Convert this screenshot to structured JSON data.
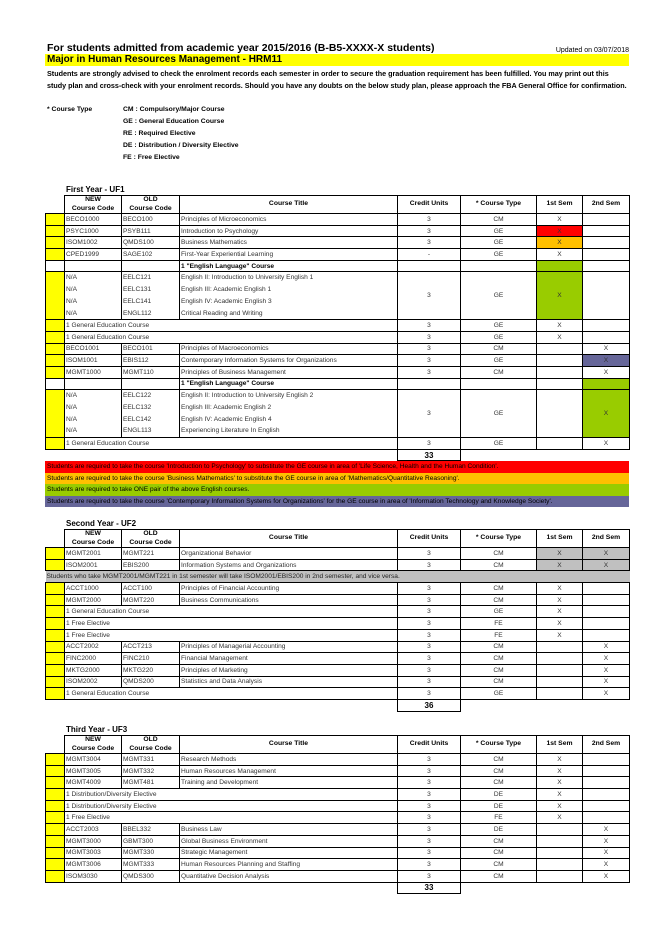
{
  "header": {
    "title": "For students admitted from academic year 2015/2016 (B-B5-XXXX-X students)",
    "updated": "Updated on 03/07/2018",
    "major": "Major in Human Resources Management - HRM11",
    "advice": "Students are strongly advised to check the enrolment records each semester in order to secure the graduation requirement has been fulfilled.  You may print out this study plan and cross-check with your enrolment records.  Should you have any doubts on the below study plan, please approach the FBA General Office for confirmation."
  },
  "legend": {
    "label": "* Course Type",
    "items": [
      "CM : Compulsory/Major Course",
      "GE : General Education Course",
      "RE : Required Elective",
      "DE : Distribution / Diversity Elective",
      "FE :  Free Elective"
    ]
  },
  "columns": [
    "NEW Course Code",
    "OLD Course Code",
    "Course Title",
    "Credit Units",
    "* Course Type",
    "1st Sem",
    "2nd Sem"
  ],
  "colors": {
    "mark": "#ffff00",
    "red": "#ff0000",
    "orange": "#ffc000",
    "green": "#99cc00",
    "purple": "#666699",
    "gray": "#c0c0c0"
  },
  "years": [
    {
      "title": "First Year - UF1",
      "rows": [
        {
          "kind": "course",
          "new": "BECO1000",
          "old": "BECO100",
          "title": "Principles of Microeconomics",
          "cu": "3",
          "type": "CM",
          "s1": "X",
          "s2": ""
        },
        {
          "kind": "course",
          "new": "PSYC1000",
          "old": "PSYB111",
          "title": "Introduction to Psychology",
          "cu": "3",
          "type": "GE",
          "s1": "X",
          "s2": "",
          "s1bg": "red"
        },
        {
          "kind": "course",
          "new": "ISOM1002",
          "old": "QMDS100",
          "title": "Business Mathematics",
          "cu": "3",
          "type": "GE",
          "s1": "X",
          "s2": "",
          "s1bg": "orange"
        },
        {
          "kind": "course",
          "new": "CPED1999",
          "old": "SAGE102",
          "title": "First-Year Experiential Learning",
          "cu": "-",
          "type": "GE",
          "s1": "X",
          "s2": ""
        },
        {
          "kind": "heading",
          "title": "1 \"English Language\" Course",
          "s1bg": "green"
        },
        {
          "kind": "group",
          "lines": [
            {
              "new": "N/A",
              "old": "EELC121",
              "title": "English II: Introduction to University English 1"
            },
            {
              "new": "N/A",
              "old": "EELC131",
              "title": "English III: Academic English 1"
            },
            {
              "new": "N/A",
              "old": "EELC141",
              "title": "English IV: Academic English 3"
            },
            {
              "new": "N/A",
              "old": "ENGL112",
              "title": "Critical Reading and Writing"
            }
          ],
          "cu": "3",
          "type": "GE",
          "s1": "X",
          "s2": "",
          "s1bg": "green"
        },
        {
          "kind": "span",
          "label": "1 General Education Course",
          "cu": "3",
          "type": "GE",
          "s1": "X",
          "s2": ""
        },
        {
          "kind": "span",
          "label": "1 General Education Course",
          "cu": "3",
          "type": "GE",
          "s1": "X",
          "s2": ""
        },
        {
          "kind": "course",
          "new": "BECO1001",
          "old": "BECO101",
          "title": "Principles of Macroeconomics",
          "cu": "3",
          "type": "CM",
          "s1": "",
          "s2": "X"
        },
        {
          "kind": "course",
          "new": "ISOM1001",
          "old": "EBIS112",
          "title": "Contemporary Information Systems for Organizations",
          "cu": "3",
          "type": "GE",
          "s1": "",
          "s2": "X",
          "s2bg": "purple"
        },
        {
          "kind": "course",
          "new": "MGMT1000",
          "old": "MGMT110",
          "title": "Principles of Business Management",
          "cu": "3",
          "type": "CM",
          "s1": "",
          "s2": "X"
        },
        {
          "kind": "heading",
          "title": "1 \"English Language\" Course",
          "s2bg": "green"
        },
        {
          "kind": "group",
          "lines": [
            {
              "new": "N/A",
              "old": "EELC122",
              "title": "English II: Introduction to University English 2"
            },
            {
              "new": "N/A",
              "old": "EELC132",
              "title": "English III: Academic English 2"
            },
            {
              "new": "N/A",
              "old": "EELC142",
              "title": "English IV: Academic English 4"
            },
            {
              "new": "N/A",
              "old": "ENGL113",
              "title": "Experiencing Literature In English"
            }
          ],
          "cu": "3",
          "type": "GE",
          "s1": "",
          "s2": "X",
          "s2bg": "green"
        },
        {
          "kind": "span",
          "label": "1 General Education Course",
          "cu": "3",
          "type": "GE",
          "s1": "",
          "s2": "X"
        }
      ],
      "total": "33",
      "notes": [
        {
          "text": "Students are required to take the course 'Introduction to Psychology' to substitute the GE course in area of 'Life Science, Health and the Human Condition'.",
          "bg": "red"
        },
        {
          "text": "Students are required to take the course 'Business Mathematics' to substitute the GE course in area of 'Mathematics/Quantitative Reasoning'.",
          "bg": "orange"
        },
        {
          "text": "Students are required to take ONE pair of the above English courses.",
          "bg": "green"
        },
        {
          "text": "Students are required to take the course 'Contemporary Information Systems for Organizations' for the GE course in area of 'Information Technology and Knowledge Society'.",
          "bg": "purple"
        }
      ]
    },
    {
      "title": "Second Year - UF2",
      "rows": [
        {
          "kind": "course",
          "new": "MGMT2001",
          "old": "MGMT221",
          "title": "Organizational Behavior",
          "cu": "3",
          "type": "CM",
          "s1": "X",
          "s2": "X",
          "s1bg": "gray",
          "s2bg": "gray"
        },
        {
          "kind": "course",
          "new": "ISOM2001",
          "old": "EBIS200",
          "title": "Information Systems and Organizations",
          "cu": "3",
          "type": "CM",
          "s1": "X",
          "s2": "X",
          "s1bg": "gray",
          "s2bg": "gray"
        },
        {
          "kind": "note",
          "text": "Students who take MGMT2001/MGMT221 in 1st semester will take ISOM2001/EBIS200 in 2nd semester, and vice versa."
        },
        {
          "kind": "course",
          "new": "ACCT1000",
          "old": "ACCT100",
          "title": "Principles of Financial Accounting",
          "cu": "3",
          "type": "CM",
          "s1": "X",
          "s2": ""
        },
        {
          "kind": "course",
          "new": "MGMT2000",
          "old": "MGMT220",
          "title": "Business Communications",
          "cu": "3",
          "type": "CM",
          "s1": "X",
          "s2": ""
        },
        {
          "kind": "span",
          "label": "1 General Education Course",
          "cu": "3",
          "type": "GE",
          "s1": "X",
          "s2": ""
        },
        {
          "kind": "span",
          "label": "1 Free Elective",
          "cu": "3",
          "type": "FE",
          "s1": "X",
          "s2": ""
        },
        {
          "kind": "span",
          "label": "1 Free Elective",
          "cu": "3",
          "type": "FE",
          "s1": "X",
          "s2": ""
        },
        {
          "kind": "course",
          "new": "ACCT2002",
          "old": "ACCT213",
          "title": "Principles of Managerial Accounting",
          "cu": "3",
          "type": "CM",
          "s1": "",
          "s2": "X"
        },
        {
          "kind": "course",
          "new": "FINC2000",
          "old": "FINC210",
          "title": "Financial Management",
          "cu": "3",
          "type": "CM",
          "s1": "",
          "s2": "X"
        },
        {
          "kind": "course",
          "new": "MKTG2000",
          "old": "MKTG220",
          "title": "Principles of Marketing",
          "cu": "3",
          "type": "CM",
          "s1": "",
          "s2": "X"
        },
        {
          "kind": "course",
          "new": "ISOM2002",
          "old": "QMDS200",
          "title": "Statistics and Data Analysis",
          "cu": "3",
          "type": "CM",
          "s1": "",
          "s2": "X"
        },
        {
          "kind": "span",
          "label": "1 General Education Course",
          "cu": "3",
          "type": "GE",
          "s1": "",
          "s2": "X"
        }
      ],
      "total": "36",
      "notes": []
    },
    {
      "title": "Third Year - UF3",
      "rows": [
        {
          "kind": "course",
          "new": "MGMT3004",
          "old": "MGMT331",
          "title": "Research Methods",
          "cu": "3",
          "type": "CM",
          "s1": "X",
          "s2": ""
        },
        {
          "kind": "course",
          "new": "MGMT3005",
          "old": "MGMT332",
          "title": "Human Resources Management",
          "cu": "3",
          "type": "CM",
          "s1": "X",
          "s2": ""
        },
        {
          "kind": "course",
          "new": "MGMT4009",
          "old": "MGMT481",
          "title": "Training and Development",
          "cu": "3",
          "type": "CM",
          "s1": "X",
          "s2": ""
        },
        {
          "kind": "span",
          "label": "1 Distribution/Diversity Elective",
          "cu": "3",
          "type": "DE",
          "s1": "X",
          "s2": ""
        },
        {
          "kind": "span",
          "label": "1 Distribution/Diversity Elective",
          "cu": "3",
          "type": "DE",
          "s1": "X",
          "s2": ""
        },
        {
          "kind": "span",
          "label": "1 Free Elective",
          "cu": "3",
          "type": "FE",
          "s1": "X",
          "s2": ""
        },
        {
          "kind": "course",
          "new": "ACCT2003",
          "old": "BBEL332",
          "title": "Business Law",
          "cu": "3",
          "type": "DE",
          "s1": "",
          "s2": "X"
        },
        {
          "kind": "course",
          "new": "MGMT3000",
          "old": "GBMT300",
          "title": "Global Business Environment",
          "cu": "3",
          "type": "CM",
          "s1": "",
          "s2": "X"
        },
        {
          "kind": "course",
          "new": "MGMT3003",
          "old": "MGMT330",
          "title": "Strategic Management",
          "cu": "3",
          "type": "CM",
          "s1": "",
          "s2": "X"
        },
        {
          "kind": "course",
          "new": "MGMT3006",
          "old": "MGMT333",
          "title": "Human Resources Planning and Staffing",
          "cu": "3",
          "type": "CM",
          "s1": "",
          "s2": "X"
        },
        {
          "kind": "course",
          "new": "ISOM3030",
          "old": "QMDS300",
          "title": "Quantitative Decision Analysis",
          "cu": "3",
          "type": "CM",
          "s1": "",
          "s2": "X"
        }
      ],
      "total": "33",
      "notes": []
    }
  ]
}
